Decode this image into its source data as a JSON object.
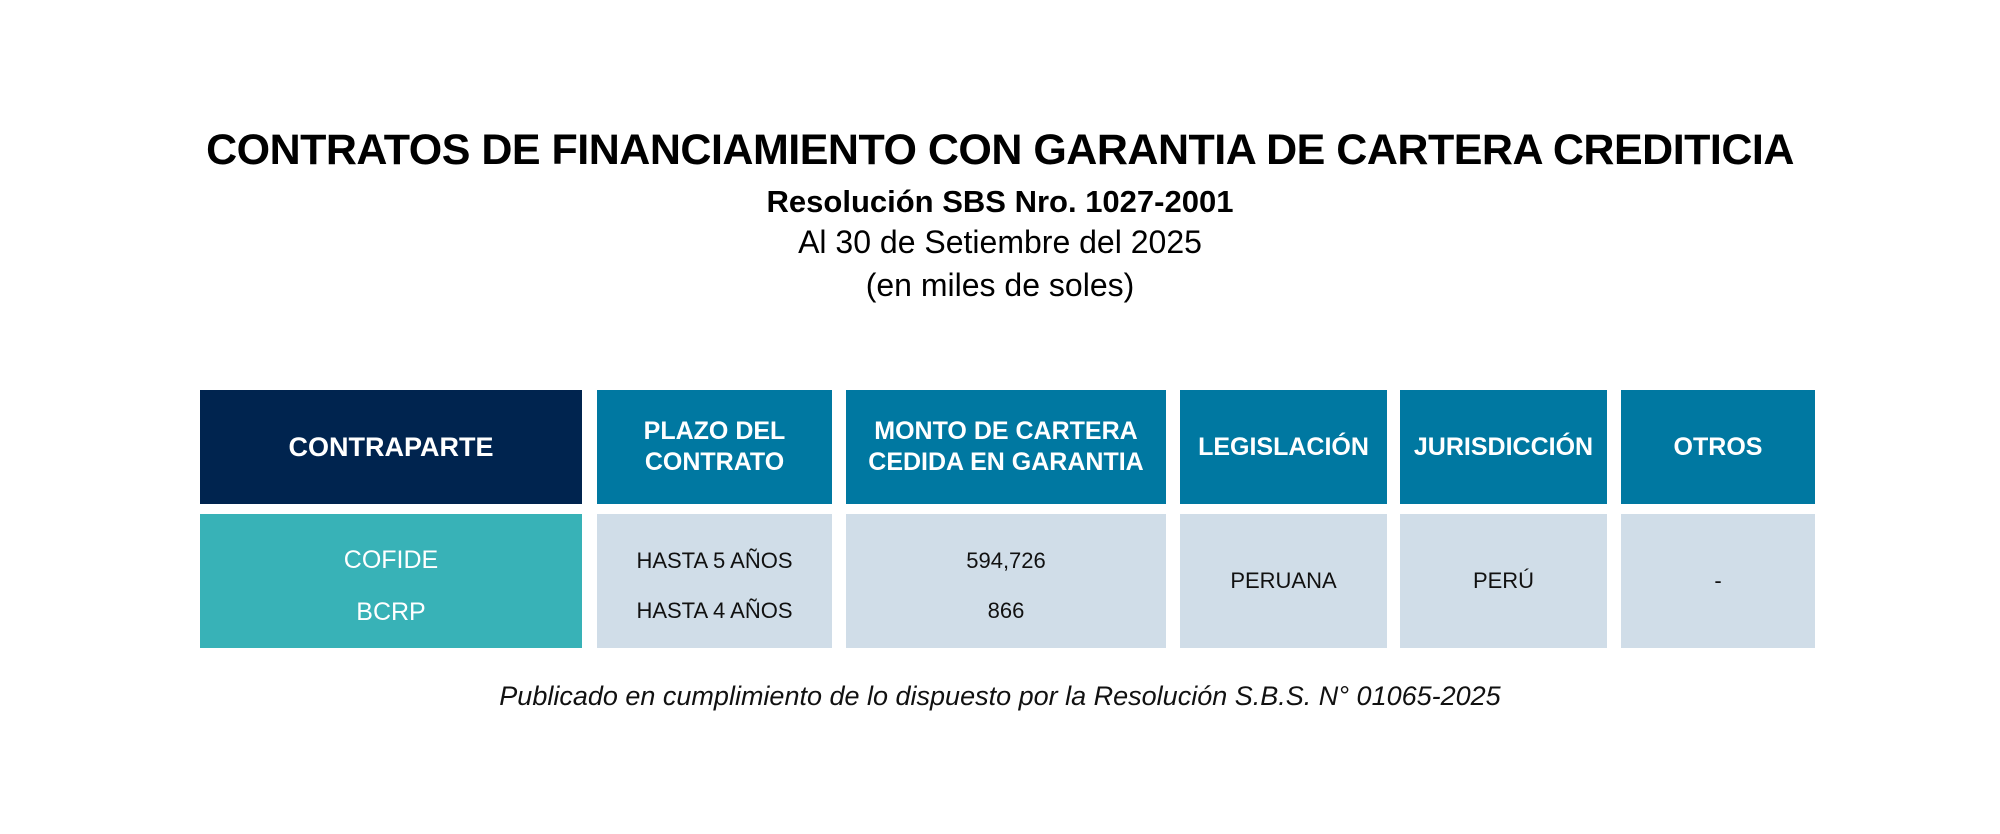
{
  "document": {
    "title": "CONTRATOS DE FINANCIAMIENTO CON GARANTIA DE CARTERA CREDITICIA",
    "subtitle": "Resolución SBS Nro. 1027-2001",
    "date_line": "Al 30 de Setiembre del 2025",
    "units_line": "(en miles de soles)"
  },
  "table": {
    "headers": {
      "contraparte": "CONTRAPARTE",
      "plazo_line1": "PLAZO DEL",
      "plazo_line2": "CONTRATO",
      "monto_line1": "MONTO DE CARTERA",
      "monto_line2": "CEDIDA EN GARANTIA",
      "legislacion": "LEGISLACIÓN",
      "jurisdiccion": "JURISDICCIÓN",
      "otros": "OTROS"
    },
    "rows": [
      {
        "contraparte": "COFIDE",
        "plazo": "HASTA 5 AÑOS",
        "monto": "594,726"
      },
      {
        "contraparte": "BCRP",
        "plazo": "HASTA 4 AÑOS",
        "monto": "866"
      }
    ],
    "legislacion": "PERUANA",
    "jurisdiccion": "PERÚ",
    "otros": "-"
  },
  "footnote": "Publicado en cumplimiento de lo dispuesto por la Resolución S.B.S. N° 01065-2025",
  "colors": {
    "header_dark": "#00244f",
    "header_blue": "#0078a1",
    "counterparty_teal": "#38b2b7",
    "body_gray": "#d0dde8"
  }
}
